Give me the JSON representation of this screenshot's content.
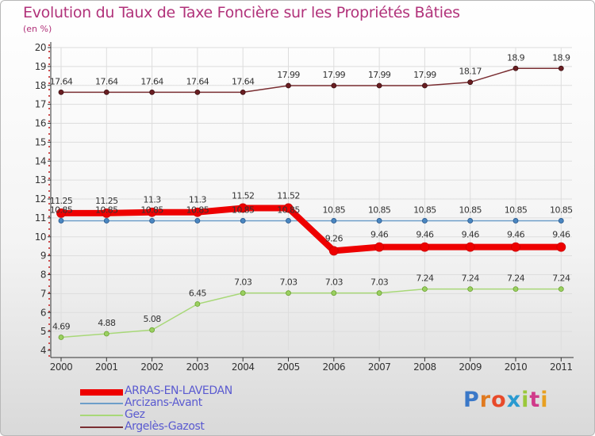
{
  "chart_data": {
    "type": "line",
    "title": "Evolution du Taux de Taxe Foncière sur les Propriétés Bâties",
    "unit_label": "(en %)",
    "xlabel": "",
    "ylabel": "(en %)",
    "categories": [
      "2000",
      "2001",
      "2002",
      "2003",
      "2004",
      "2005",
      "2006",
      "2007",
      "2008",
      "2009",
      "2010",
      "2011"
    ],
    "ylim": [
      4,
      20
    ],
    "yticks": [
      4,
      5,
      6,
      7,
      8,
      9,
      10,
      11,
      12,
      13,
      14,
      15,
      16,
      17,
      18,
      19,
      20
    ],
    "series": [
      {
        "name": "ARRAS-EN-LAVEDAN",
        "color": "#ee0000",
        "labels": [
          "11.25",
          "11.25",
          "11.3",
          "11.3",
          "11.52",
          "11.52",
          "9.26",
          "9.46",
          "9.46",
          "9.46",
          "9.46",
          "9.46"
        ],
        "values": [
          11.25,
          11.25,
          11.3,
          11.3,
          11.52,
          11.52,
          9.26,
          9.46,
          9.46,
          9.46,
          9.46,
          9.46
        ]
      },
      {
        "name": "Arcizans-Avant",
        "color": "#6d9ec9",
        "labels": [
          "10.85",
          "10.85",
          "10.85",
          "10.85",
          "10.85",
          "10.85",
          "10.85",
          "10.85",
          "10.85",
          "10.85",
          "10.85",
          "10.85"
        ],
        "values": [
          10.85,
          10.85,
          10.85,
          10.85,
          10.85,
          10.85,
          10.85,
          10.85,
          10.85,
          10.85,
          10.85,
          10.85
        ]
      },
      {
        "name": "Gez",
        "color": "#a8d878",
        "labels": [
          "4.69",
          "4.88",
          "5.08",
          "6.45",
          "7.03",
          "7.03",
          "7.03",
          "7.03",
          "7.24",
          "7.24",
          "7.24",
          "7.24"
        ],
        "values": [
          4.69,
          4.88,
          5.08,
          6.45,
          7.03,
          7.03,
          7.03,
          7.03,
          7.24,
          7.24,
          7.24,
          7.24
        ]
      },
      {
        "name": "Argelès-Gazost",
        "color": "#7a2e32",
        "labels": [
          "17.64",
          "17.64",
          "17.64",
          "17.64",
          "17.64",
          "17.99",
          "17.99",
          "17.99",
          "17.99",
          "18.17",
          "18.9",
          "18.9"
        ],
        "values": [
          17.64,
          17.64,
          17.64,
          17.64,
          17.64,
          17.99,
          17.99,
          17.99,
          17.99,
          18.17,
          18.9,
          18.9
        ]
      }
    ]
  },
  "legend": {
    "items": [
      {
        "label": "ARRAS-EN-LAVEDAN",
        "color": "#ee0000",
        "text_color": "#5a5ad0"
      },
      {
        "label": "Arcizans-Avant",
        "color": "#6d9ec9",
        "text_color": "#5a5ad0"
      },
      {
        "label": "Gez",
        "color": "#a8d878",
        "text_color": "#5a5ad0"
      },
      {
        "label": "Argelès-Gazost",
        "color": "#7a2e32",
        "text_color": "#5a5ad0"
      }
    ]
  },
  "logo": {
    "letters": [
      "P",
      "r",
      "o",
      "x",
      "i",
      "t",
      "i"
    ],
    "colors": [
      "#3a78c8",
      "#e07a20",
      "#e84a2a",
      "#2a9ad0",
      "#9ac83a",
      "#d03a8a",
      "#e8a020"
    ]
  }
}
